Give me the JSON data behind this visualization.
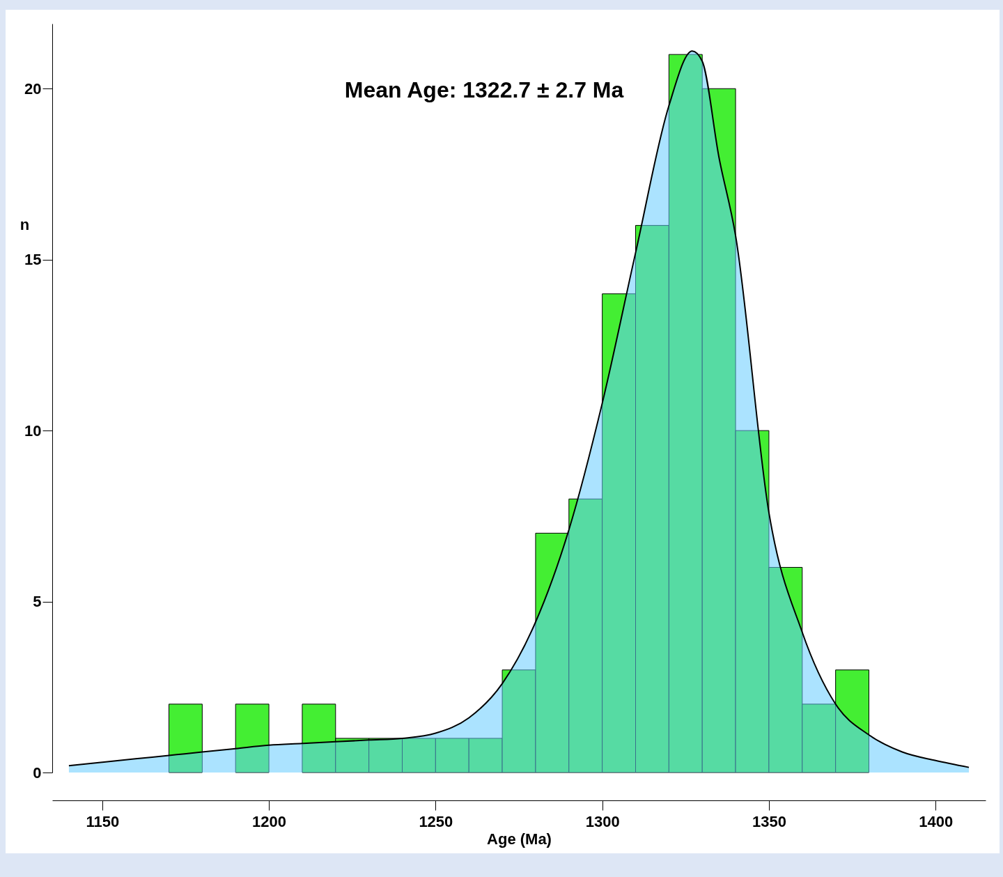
{
  "chart_data": {
    "type": "histogram",
    "xlabel": "Age (Ma)",
    "ylabel": "n",
    "annotations": [
      "Mean Age: 1322.7 ± 2.7 Ma"
    ],
    "bins": [
      1170,
      1180,
      1190,
      1200,
      1210,
      1220,
      1230,
      1240,
      1250,
      1260,
      1270,
      1280,
      1290,
      1300,
      1310,
      1320,
      1330,
      1340,
      1350,
      1360,
      1370,
      1380
    ],
    "series": [
      {
        "color": "#44ee33",
        "values": [
          2,
          0,
          2,
          0,
          2,
          1,
          1,
          1,
          1,
          1,
          3,
          7,
          8,
          14,
          16,
          21,
          20,
          10,
          6,
          2,
          3
        ]
      },
      {
        "type": "area",
        "color": "#66ccff",
        "x": [
          1140,
          1150,
          1160,
          1170,
          1180,
          1190,
          1200,
          1210,
          1220,
          1230,
          1240,
          1250,
          1260,
          1270,
          1280,
          1290,
          1300,
          1310,
          1320,
          1327,
          1330,
          1335,
          1340,
          1350,
          1360,
          1370,
          1380,
          1390,
          1400,
          1410
        ],
        "values": [
          0.2,
          0.3,
          0.4,
          0.5,
          0.6,
          0.7,
          0.8,
          0.85,
          0.9,
          0.95,
          1.0,
          1.15,
          1.6,
          2.6,
          4.4,
          7.1,
          10.8,
          15.2,
          19.5,
          21.1,
          20.8,
          18.0,
          15.7,
          7.6,
          4.1,
          2.0,
          1.1,
          0.6,
          0.35,
          0.15
        ]
      }
    ],
    "xlim": [
      1135,
      1415
    ],
    "xticks": [
      1150,
      1200,
      1250,
      1300,
      1350,
      1400
    ],
    "ylim": [
      0,
      21.9
    ],
    "yticks": [
      0,
      5,
      10,
      15,
      20
    ],
    "grid": false
  }
}
